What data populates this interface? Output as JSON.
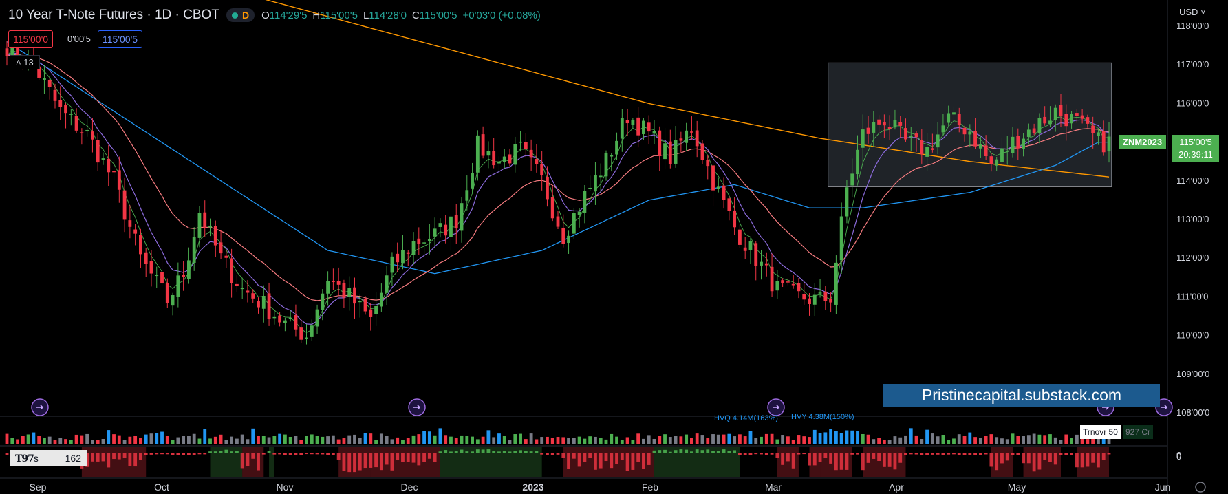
{
  "header": {
    "title": "10 Year T-Note Futures · 1D · CBOT",
    "interval_letter": "D",
    "ohlc": {
      "o_label": "O",
      "o": "114'29'5",
      "h_label": "H",
      "h": "115'00'5",
      "l_label": "L",
      "l": "114'28'0",
      "c_label": "C",
      "c": "115'00'5",
      "change": "+0'03'0 (+0.08%)"
    }
  },
  "tags": {
    "bid": "115'00'0",
    "spread": "0'00'5",
    "ask": "115'00'5"
  },
  "legend_count": "13",
  "currency": "USD",
  "symbol": "ZNM2023",
  "last_price": "115'00'5",
  "countdown": "20:39:11",
  "watermark": "Pristinecapital.substack.com",
  "volume_labels": {
    "hvq": "HVQ 4.14M(163%)",
    "hvy": "HVY 4.38M(150%)"
  },
  "turnover": {
    "label": "Trnovr 50",
    "value": "927 Cr"
  },
  "indicator": {
    "logo": "T97",
    "suffix": "s",
    "value": "162"
  },
  "colors": {
    "up": "#4caf50",
    "down": "#f23645",
    "ema_fast": "#8c6bdd",
    "ema_mid": "#f77c80",
    "ema_slow": "#2196f3",
    "sma_long": "#ff9800",
    "volume_hv": "#2196f3"
  },
  "chart_data": {
    "type": "candlestick",
    "price_axis": {
      "min": 108,
      "max": 118,
      "ticks": [
        "118'00'0",
        "117'00'0",
        "116'00'0",
        "115'00'0",
        "114'00'0",
        "113'00'0",
        "112'00'0",
        "111'00'0",
        "110'00'0",
        "109'00'0",
        "108'00'0"
      ]
    },
    "time_axis": {
      "ticks": [
        "Sep",
        "Oct",
        "Nov",
        "Dec",
        "2023",
        "Feb",
        "Mar",
        "Apr",
        "May",
        "Jun"
      ]
    },
    "volume_axis_label": "0",
    "indicator_axis_label": "0",
    "anchors": [
      [
        0,
        117.5
      ],
      [
        5,
        117.0
      ],
      [
        10,
        115.8
      ],
      [
        15,
        115.2
      ],
      [
        20,
        114.0
      ],
      [
        25,
        112.0
      ],
      [
        30,
        110.9
      ],
      [
        33,
        111.6
      ],
      [
        36,
        113.2
      ],
      [
        40,
        112.0
      ],
      [
        44,
        111.2
      ],
      [
        48,
        110.8
      ],
      [
        52,
        110.3
      ],
      [
        56,
        110.0
      ],
      [
        60,
        111.5
      ],
      [
        64,
        111.0
      ],
      [
        68,
        110.4
      ],
      [
        72,
        111.8
      ],
      [
        76,
        112.4
      ],
      [
        80,
        112.6
      ],
      [
        84,
        113.0
      ],
      [
        88,
        114.9
      ],
      [
        92,
        114.5
      ],
      [
        96,
        114.8
      ],
      [
        100,
        114.0
      ],
      [
        104,
        112.6
      ],
      [
        108,
        113.6
      ],
      [
        112,
        114.5
      ],
      [
        116,
        115.7
      ],
      [
        120,
        115.2
      ],
      [
        124,
        114.6
      ],
      [
        128,
        115.4
      ],
      [
        132,
        114.0
      ],
      [
        136,
        112.8
      ],
      [
        140,
        112.0
      ],
      [
        144,
        111.2
      ],
      [
        148,
        111.0
      ],
      [
        152,
        110.9
      ],
      [
        154,
        111.0
      ],
      [
        157,
        113.8
      ],
      [
        160,
        115.2
      ],
      [
        164,
        115.6
      ],
      [
        168,
        115.0
      ],
      [
        172,
        114.8
      ],
      [
        176,
        115.6
      ],
      [
        180,
        115.3
      ],
      [
        184,
        114.4
      ],
      [
        188,
        115.0
      ],
      [
        192,
        115.4
      ],
      [
        196,
        115.8
      ],
      [
        200,
        115.5
      ],
      [
        204,
        115.0
      ]
    ],
    "ma_anchors": {
      "sma_long": [
        [
          0,
          119.5
        ],
        [
          40,
          119.0
        ],
        [
          80,
          117.5
        ],
        [
          120,
          116.0
        ],
        [
          152,
          115.1
        ],
        [
          180,
          114.5
        ],
        [
          206,
          114.1
        ]
      ],
      "ema_slow": [
        [
          0,
          117.6
        ],
        [
          20,
          115.8
        ],
        [
          40,
          114.0
        ],
        [
          60,
          112.2
        ],
        [
          80,
          111.6
        ],
        [
          100,
          112.2
        ],
        [
          120,
          113.5
        ],
        [
          136,
          113.9
        ],
        [
          150,
          113.3
        ],
        [
          160,
          113.3
        ],
        [
          180,
          113.7
        ],
        [
          196,
          114.4
        ],
        [
          204,
          115.0
        ]
      ]
    },
    "rect_range": {
      "start": 154,
      "end": 206,
      "low": 113.85,
      "high": 117.0
    },
    "bars": 207
  }
}
